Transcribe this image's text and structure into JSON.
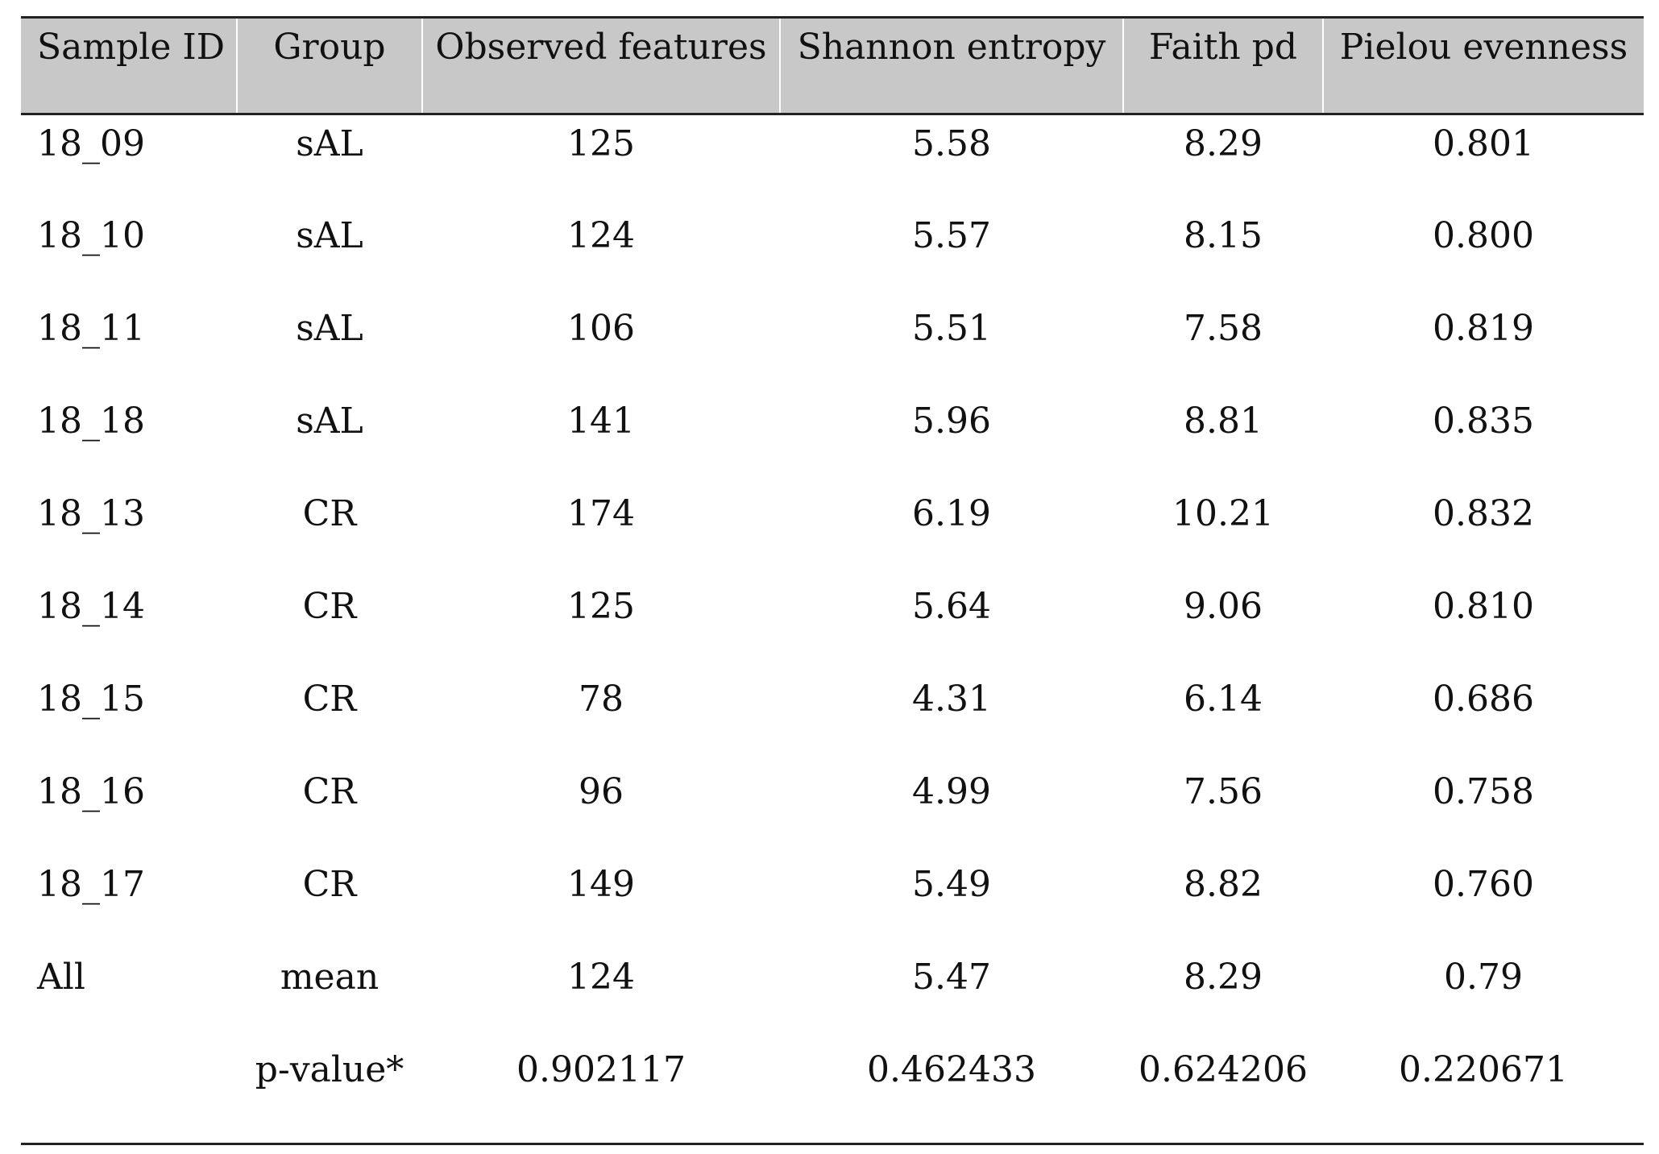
{
  "table": {
    "headers": [
      "Sample ID",
      "Group",
      "Observed features",
      "Shannon entropy",
      "Faith pd",
      "Pielou evenness"
    ],
    "rows": [
      [
        "18_09",
        "sAL",
        "125",
        "5.58",
        "8.29",
        "0.801"
      ],
      [
        "18_10",
        "sAL",
        "124",
        "5.57",
        "8.15",
        "0.800"
      ],
      [
        "18_11",
        "sAL",
        "106",
        "5.51",
        "7.58",
        "0.819"
      ],
      [
        "18_18",
        "sAL",
        "141",
        "5.96",
        "8.81",
        "0.835"
      ],
      [
        "18_13",
        "CR",
        "174",
        "6.19",
        "10.21",
        "0.832"
      ],
      [
        "18_14",
        "CR",
        "125",
        "5.64",
        "9.06",
        "0.810"
      ],
      [
        "18_15",
        "CR",
        "78",
        "4.31",
        "6.14",
        "0.686"
      ],
      [
        "18_16",
        "CR",
        "96",
        "4.99",
        "7.56",
        "0.758"
      ],
      [
        "18_17",
        "CR",
        "149",
        "5.49",
        "8.82",
        "0.760"
      ],
      [
        "All",
        "mean",
        "124",
        "5.47",
        "8.29",
        "0.79"
      ],
      [
        "",
        "p-value*",
        "0.902117",
        "0.462433",
        "0.624206",
        "0.220671"
      ]
    ]
  },
  "colors": {
    "header_background": "#c8c8c8",
    "rule": "#222222",
    "text": "#111111"
  }
}
